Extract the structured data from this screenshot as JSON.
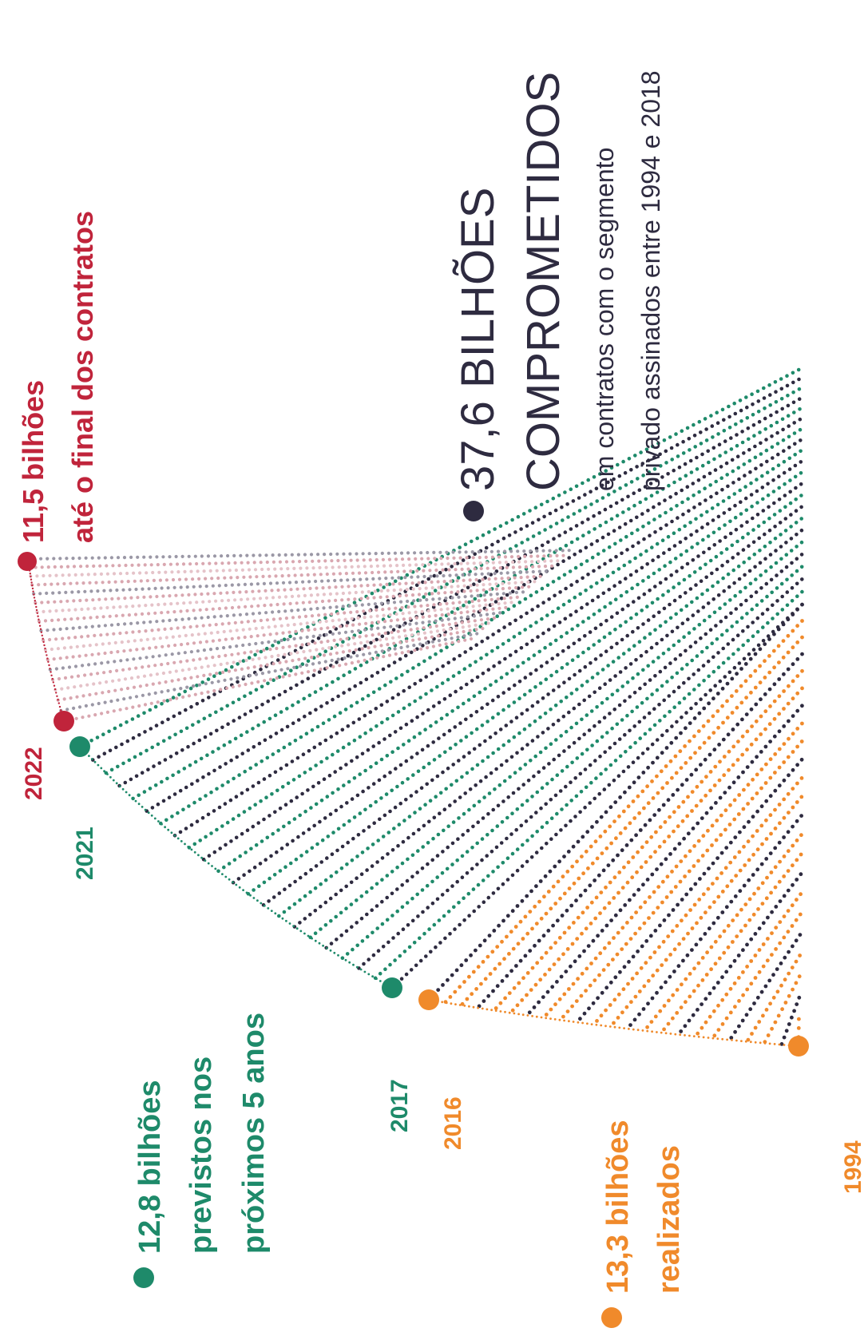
{
  "chart_data": {
    "type": "radial-dot-lines",
    "headline": {
      "value": "37,6 BILHÕES",
      "title": "COMPROMETIDOS",
      "line1": "em contratos com o segmento",
      "line2": "privado assinados entre 1994 e 2018",
      "color": "#2e2b40"
    },
    "groups": [
      {
        "key": "realizados",
        "amount": "13,3 bilhões",
        "line1": "realizados",
        "line2": "",
        "color": "#f08a2b",
        "start_year": "1994",
        "end_year": "2016"
      },
      {
        "key": "previstos",
        "amount": "12,8 bilhões",
        "line1": "previstos nos",
        "line2": "próximos 5 anos",
        "color": "#1e8a6a",
        "start_year": "2017",
        "end_year": "2021"
      },
      {
        "key": "final",
        "amount": "11,5 bilhões",
        "line1": "até o final dos contratos",
        "line2": "",
        "color": "#c0243b",
        "start_year": "2022",
        "end_year": ""
      }
    ],
    "colors": {
      "orange": "#f08a2b",
      "green": "#1e8a6a",
      "red": "#c0243b",
      "dark": "#2e2b40",
      "pink": "#d9a7b0",
      "grey": "#9b98a6"
    }
  }
}
